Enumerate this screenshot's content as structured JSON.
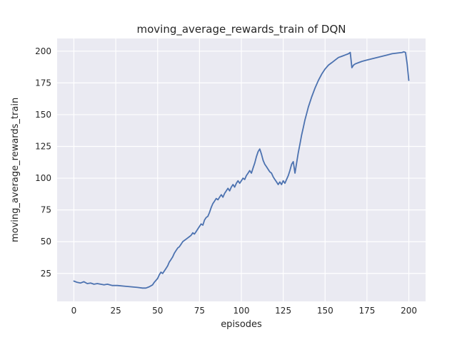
{
  "chart_data": {
    "type": "line",
    "title": "moving_average_rewards_train of DQN",
    "xlabel": "episodes",
    "ylabel": "moving_average_rewards_train",
    "xlim": [
      -10,
      210
    ],
    "ylim": [
      3,
      210
    ],
    "xticks": [
      0,
      25,
      50,
      75,
      100,
      125,
      150,
      175,
      200
    ],
    "yticks": [
      25,
      50,
      75,
      100,
      125,
      150,
      175,
      200
    ],
    "grid": true,
    "legend": "none",
    "plot_bg": "#eaeaf2",
    "fig_bg": "#ffffff",
    "grid_color": "#ffffff",
    "line_color": "#4c72b0",
    "text_color": "#262626",
    "series": [
      {
        "name": "DQN",
        "x": [
          0,
          2,
          4,
          6,
          8,
          10,
          12,
          14,
          16,
          18,
          20,
          23,
          26,
          30,
          34,
          38,
          41,
          43,
          45,
          47,
          48,
          50,
          51,
          52,
          53,
          55,
          56,
          57,
          58,
          59,
          60,
          61,
          62,
          63,
          64,
          65,
          66,
          67,
          68,
          69,
          70,
          71,
          72,
          73,
          74,
          75,
          76,
          77,
          78,
          79,
          80,
          81,
          82,
          83,
          84,
          85,
          86,
          87,
          88,
          89,
          90,
          91,
          92,
          93,
          94,
          95,
          96,
          97,
          98,
          99,
          100,
          101,
          102,
          103,
          104,
          105,
          106,
          107,
          108,
          109,
          110,
          111,
          112,
          113,
          114,
          115,
          116,
          117,
          118,
          119,
          120,
          121,
          122,
          123,
          124,
          125,
          126,
          127,
          128,
          129,
          130,
          131,
          132,
          133,
          134,
          135,
          136,
          137,
          138,
          139,
          140,
          142,
          144,
          146,
          148,
          150,
          152,
          154,
          156,
          158,
          160,
          162,
          164,
          165,
          166,
          167,
          168,
          170,
          172,
          175,
          178,
          181,
          184,
          187,
          190,
          193,
          196,
          197,
          198,
          199,
          200
        ],
        "y": [
          19,
          18,
          17.5,
          18.5,
          17,
          17.5,
          16.5,
          17,
          16.5,
          16,
          16.5,
          15.5,
          15.5,
          15,
          14.5,
          14,
          13.5,
          13.5,
          14.5,
          16,
          18,
          21,
          24,
          26,
          25,
          29,
          31,
          34,
          36,
          38,
          41,
          43,
          45,
          46,
          48,
          50,
          51,
          52,
          53,
          54,
          55,
          57,
          56,
          58,
          60,
          62,
          64,
          63,
          67,
          69,
          70,
          73,
          77,
          80,
          82,
          84,
          83,
          85,
          87,
          85,
          88,
          90,
          92,
          90,
          93,
          95,
          93,
          96,
          98,
          96,
          98,
          100,
          99,
          102,
          104,
          106,
          104,
          108,
          112,
          117,
          121,
          123,
          119,
          114,
          111,
          109,
          107,
          105,
          104,
          101,
          99,
          97,
          95,
          97,
          95,
          98,
          96,
          99,
          102,
          106,
          111,
          113,
          104,
          112,
          120,
          127,
          134,
          140,
          146,
          151,
          156,
          164,
          171,
          177,
          182,
          186,
          189,
          191,
          193,
          195,
          196,
          197,
          198,
          199,
          187,
          189,
          190,
          191,
          192,
          193,
          194,
          195,
          196,
          197,
          198,
          198.5,
          199,
          199.5,
          199,
          190,
          177
        ]
      }
    ]
  }
}
